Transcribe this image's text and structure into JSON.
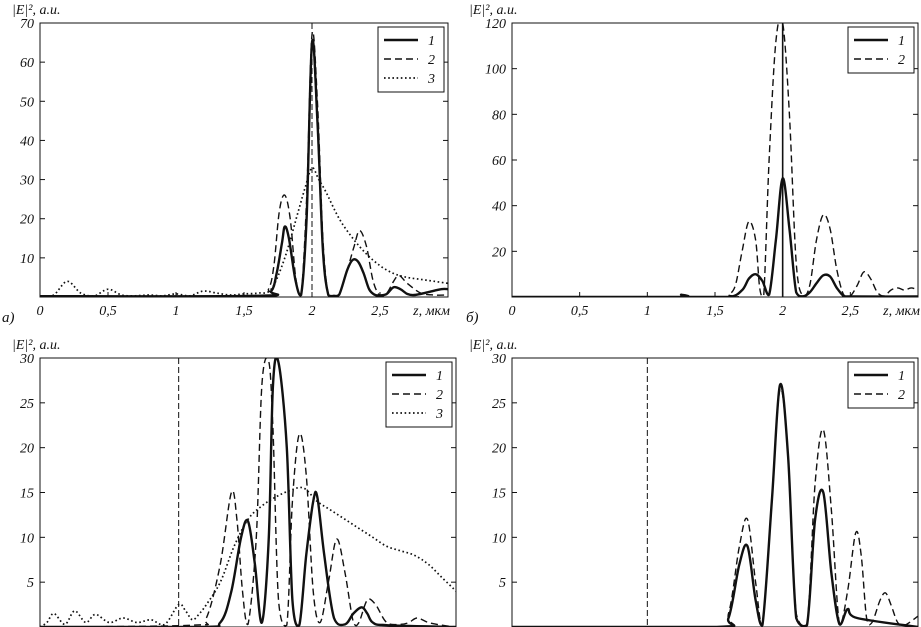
{
  "figure": {
    "panel_letters": [
      "а)",
      "б)"
    ]
  },
  "chart_data": [
    {
      "type": "line",
      "panel_label": "а)",
      "ylabel": "|E|², a.u.",
      "xlabel": "z, мкм",
      "xlim": [
        0,
        3.0
      ],
      "ylim": [
        0,
        70
      ],
      "x_ticks": [
        0,
        0.5,
        1,
        1.5,
        2,
        2.5
      ],
      "x_tick_labels": [
        "0",
        "0,5",
        "1",
        "1,5",
        "2",
        "2,5"
      ],
      "y_ticks": [
        10,
        20,
        30,
        40,
        50,
        60,
        70
      ],
      "vline": 2.0,
      "legend": "top-right",
      "series": [
        {
          "name": "1",
          "style": "solid",
          "x": [
            0,
            1.6,
            1.7,
            1.74,
            1.78,
            1.8,
            1.83,
            1.88,
            1.92,
            1.96,
            2.0,
            2.04,
            2.08,
            2.12,
            2.16,
            2.2,
            2.26,
            2.3,
            2.34,
            2.38,
            2.42,
            2.46,
            2.5,
            2.55,
            2.6,
            2.65,
            2.7,
            2.75,
            2.85,
            2.95,
            3.0
          ],
          "y": [
            0.2,
            0.3,
            1.5,
            6,
            14,
            18,
            15,
            4,
            0.5,
            20,
            65,
            45,
            12,
            0.5,
            0.3,
            0.6,
            7,
            9.5,
            9,
            6,
            2,
            0.6,
            0.4,
            0.8,
            2.5,
            2,
            0.8,
            0.5,
            1.2,
            2,
            2
          ]
        },
        {
          "name": "2",
          "style": "dashed",
          "x": [
            0,
            1.6,
            1.68,
            1.72,
            1.76,
            1.8,
            1.84,
            1.88,
            1.92,
            1.96,
            2.0,
            2.04,
            2.08,
            2.12,
            2.16,
            2.2,
            2.26,
            2.31,
            2.35,
            2.4,
            2.45,
            2.5,
            2.55,
            2.6,
            2.64,
            2.7,
            2.8,
            2.9,
            3.0
          ],
          "y": [
            0.2,
            0.3,
            2,
            8,
            22,
            26,
            20,
            5,
            0.5,
            25,
            67,
            50,
            15,
            0.5,
            0.3,
            0.5,
            7,
            13,
            17,
            13,
            4,
            0.4,
            1,
            4,
            5.5,
            3.5,
            1,
            0.5,
            0.5
          ]
        },
        {
          "name": "3",
          "style": "dotted",
          "x": [
            0,
            0.1,
            0.2,
            0.3,
            0.4,
            0.5,
            0.6,
            0.7,
            0.8,
            0.9,
            1.0,
            1.1,
            1.2,
            1.3,
            1.4,
            1.5,
            1.6,
            1.7,
            1.8,
            1.9,
            1.95,
            2.0,
            2.05,
            2.1,
            2.2,
            2.3,
            2.4,
            2.5,
            2.6,
            2.7,
            2.8,
            2.9,
            3.0
          ],
          "y": [
            0.2,
            0.5,
            4,
            1,
            0.3,
            2,
            0.5,
            0.3,
            0.5,
            0.3,
            0.8,
            0.3,
            1.5,
            1,
            0.5,
            0.8,
            1,
            2,
            10,
            22,
            28,
            33,
            30,
            27,
            20,
            15,
            11,
            8,
            6,
            5,
            4.5,
            4,
            3.5
          ]
        }
      ]
    },
    {
      "type": "line",
      "panel_label": "б)",
      "ylabel": "|E|², a.u.",
      "xlabel": "z, мкм",
      "xlim": [
        0,
        3.0
      ],
      "ylim": [
        0,
        120
      ],
      "x_ticks": [
        0,
        0.5,
        1,
        1.5,
        2,
        2.5
      ],
      "x_tick_labels": [
        "0",
        "0,5",
        "1",
        "1,5",
        "2",
        "2,5"
      ],
      "y_ticks": [
        20,
        40,
        60,
        80,
        100,
        120
      ],
      "vline": 2.0,
      "legend": "top-right",
      "series": [
        {
          "name": "1",
          "style": "solid",
          "x": [
            0,
            1.2,
            1.25,
            1.3,
            1.6,
            1.7,
            1.75,
            1.8,
            1.85,
            1.9,
            1.95,
            2.0,
            2.05,
            2.1,
            2.15,
            2.2,
            2.25,
            2.3,
            2.35,
            2.4,
            2.45,
            2.5,
            3.0
          ],
          "y": [
            0,
            0,
            1,
            0,
            0,
            3,
            8,
            10,
            7,
            1,
            25,
            52,
            30,
            2,
            0.3,
            2,
            6,
            9.5,
            9,
            4,
            0.5,
            0.2,
            0.2
          ]
        },
        {
          "name": "2",
          "style": "dashed",
          "x": [
            0,
            1.55,
            1.6,
            1.65,
            1.7,
            1.75,
            1.8,
            1.83,
            1.86,
            1.9,
            1.95,
            2.0,
            2.05,
            2.1,
            2.15,
            2.2,
            2.25,
            2.3,
            2.35,
            2.4,
            2.45,
            2.5,
            2.55,
            2.6,
            2.65,
            2.7,
            2.75,
            2.8,
            2.85,
            2.9,
            2.95,
            3.0
          ],
          "y": [
            0,
            0,
            1,
            5,
            20,
            33,
            25,
            4,
            0.5,
            60,
            112,
            120,
            80,
            15,
            0.5,
            5,
            25,
            36,
            30,
            12,
            1,
            0.5,
            5,
            11,
            8,
            2,
            0.5,
            3,
            4,
            3,
            4,
            3
          ]
        }
      ]
    },
    {
      "type": "line",
      "panel_label": "",
      "ylabel": "|E|², a.u.",
      "xlabel": "",
      "xlim": [
        0,
        3.0
      ],
      "ylim": [
        0,
        30
      ],
      "x_ticks": [],
      "x_tick_labels": [],
      "y_ticks": [
        5,
        10,
        15,
        20,
        25,
        30
      ],
      "vline": 1.0,
      "legend": "top-right",
      "series": [
        {
          "name": "1",
          "style": "solid",
          "x": [
            0,
            1.15,
            1.3,
            1.38,
            1.45,
            1.5,
            1.55,
            1.6,
            1.65,
            1.68,
            1.72,
            1.78,
            1.82,
            1.87,
            1.92,
            1.97,
            2.0,
            2.05,
            2.12,
            2.2,
            2.26,
            2.32,
            2.36,
            2.4,
            2.5,
            3.0
          ],
          "y": [
            0,
            0,
            0.5,
            4,
            10,
            11.8,
            7,
            0.5,
            10,
            27,
            29.5,
            20,
            3,
            0.2,
            8,
            14,
            14.5,
            8,
            1,
            0.3,
            1.5,
            2.2,
            1.5,
            0.5,
            0.2,
            0
          ]
        },
        {
          "name": "2",
          "style": "dashed",
          "x": [
            0,
            1.1,
            1.2,
            1.3,
            1.38,
            1.42,
            1.46,
            1.5,
            1.56,
            1.6,
            1.65,
            1.68,
            1.72,
            1.78,
            1.82,
            1.87,
            1.92,
            1.97,
            2.02,
            2.08,
            2.14,
            2.2,
            2.26,
            2.3,
            2.36,
            2.42,
            2.5,
            2.6,
            2.66,
            2.72,
            2.8,
            2.9,
            3.0
          ],
          "y": [
            0,
            0.2,
            1,
            7,
            15,
            12,
            4,
            0.3,
            10,
            27,
            29.6,
            22,
            3,
            0.2,
            14,
            21.5,
            17,
            4,
            0.5,
            5,
            9.8,
            6,
            0.5,
            0.5,
            3,
            2.5,
            0.5,
            0.3,
            0.5,
            1,
            0.5,
            0.2,
            0
          ]
        },
        {
          "name": "3",
          "style": "dotted",
          "x": [
            0,
            0.05,
            0.1,
            0.18,
            0.25,
            0.33,
            0.4,
            0.5,
            0.6,
            0.7,
            0.8,
            0.9,
            1.0,
            1.05,
            1.1,
            1.15,
            1.2,
            1.3,
            1.4,
            1.5,
            1.6,
            1.7,
            1.8,
            1.9,
            2.0,
            2.1,
            2.2,
            2.3,
            2.4,
            2.5,
            2.6,
            2.7,
            2.8,
            2.9,
            3.0
          ],
          "y": [
            0,
            0.5,
            1.5,
            0.3,
            1.8,
            0.5,
            1.4,
            0.5,
            1,
            0.5,
            0.8,
            0.3,
            2.5,
            1.8,
            0.8,
            1.5,
            2.5,
            5,
            9,
            12,
            13.5,
            14.5,
            15.2,
            15.5,
            14,
            13,
            12,
            11,
            10,
            9,
            8.5,
            8,
            7,
            5.5,
            4
          ]
        }
      ]
    },
    {
      "type": "line",
      "panel_label": "",
      "ylabel": "|E|², a.u.",
      "xlabel": "",
      "xlim": [
        0,
        3.0
      ],
      "ylim": [
        0,
        30
      ],
      "x_ticks": [],
      "x_tick_labels": [],
      "y_ticks": [
        5,
        10,
        15,
        20,
        25,
        30
      ],
      "vline": 1.0,
      "legend": "top-right",
      "series": [
        {
          "name": "1",
          "style": "solid",
          "x": [
            0,
            1.5,
            1.6,
            1.68,
            1.74,
            1.8,
            1.85,
            1.92,
            1.98,
            2.04,
            2.1,
            2.18,
            2.24,
            2.3,
            2.36,
            2.42,
            2.48,
            2.55,
            3.0
          ],
          "y": [
            0,
            0,
            1,
            7,
            9,
            3,
            0.2,
            14,
            27,
            19,
            1,
            0.2,
            12,
            15,
            6,
            0.3,
            2,
            1,
            0
          ]
        },
        {
          "name": "2",
          "style": "dashed",
          "x": [
            0,
            1.5,
            1.6,
            1.68,
            1.74,
            1.8,
            1.85,
            1.92,
            1.98,
            2.04,
            2.1,
            2.18,
            2.24,
            2.3,
            2.36,
            2.42,
            2.48,
            2.54,
            2.58,
            2.62,
            2.66,
            2.72,
            2.76,
            2.8,
            2.85,
            2.9,
            3.0
          ],
          "y": [
            0,
            0,
            1.5,
            9,
            12,
            5,
            0.3,
            14,
            26.5,
            19,
            1.5,
            0.3,
            16,
            22,
            13,
            0.3,
            4,
            10.5,
            8,
            1,
            0.5,
            3,
            3.8,
            2.5,
            0.5,
            0.2,
            1.2
          ]
        }
      ]
    }
  ]
}
